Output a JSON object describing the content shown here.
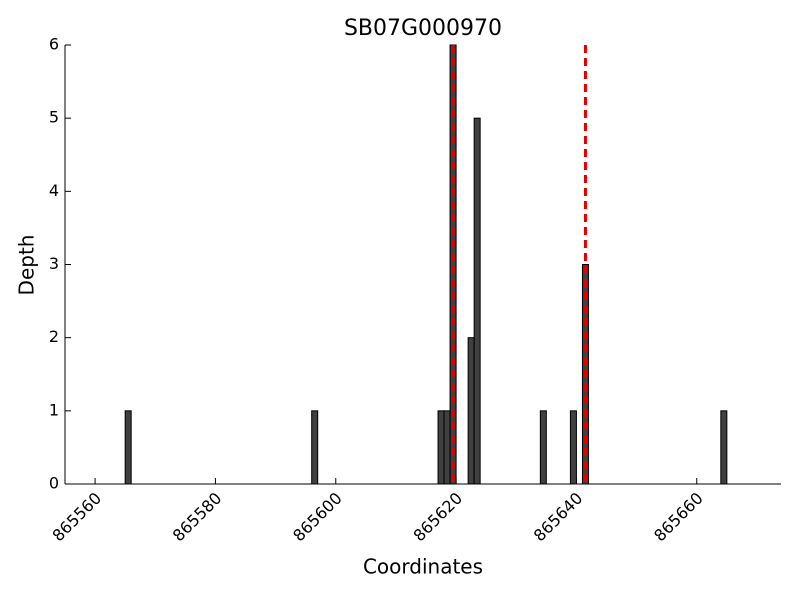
{
  "chart_data": {
    "type": "bar",
    "title": "SB07G000970",
    "xlabel": "Coordinates",
    "ylabel": "Depth",
    "x": [
      865565,
      865596,
      865617,
      865618,
      865619,
      865622,
      865623,
      865634,
      865639,
      865641,
      865664
    ],
    "values": [
      1,
      1,
      1,
      1,
      6,
      2,
      5,
      1,
      1,
      3,
      1
    ],
    "color": "#404040",
    "vlines": [
      865619.5,
      865641.5
    ],
    "vline_color": "#e00000",
    "xlim": [
      865555,
      865674
    ],
    "xticks": [
      865560,
      865580,
      865600,
      865620,
      865640,
      865660
    ],
    "ylim": [
      0,
      6
    ],
    "yticks": [
      0,
      1,
      2,
      3,
      4,
      5,
      6
    ]
  }
}
